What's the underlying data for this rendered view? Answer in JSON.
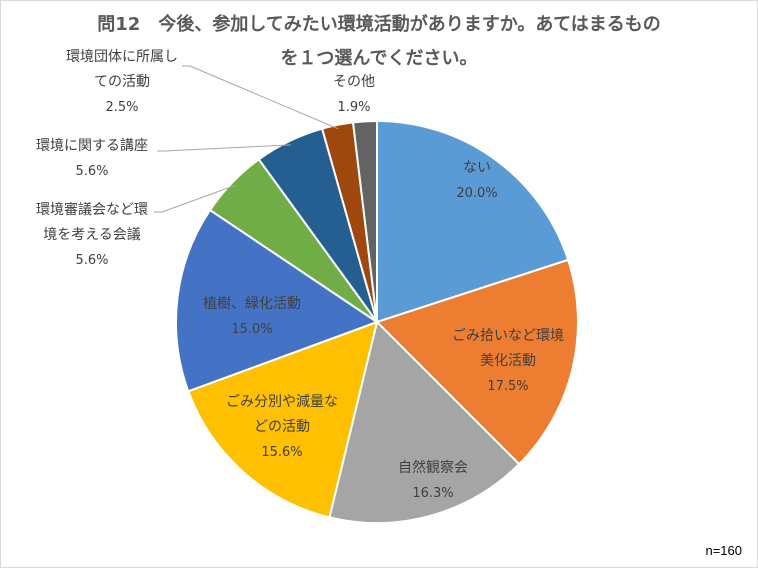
{
  "chart_data": {
    "type": "pie",
    "title": "問12　今後、参加してみたい環境活動がありますか。あてはまるものを１つ選んでください。",
    "title_lines": [
      "問12　今後、参加してみたい環境活動がありますか。あてはまるもの",
      "を１つ選んでください。"
    ],
    "note": "n=160",
    "slices": [
      {
        "label": "ない",
        "label_lines": [
          "ない"
        ],
        "value": 20.0,
        "value_label": "20.0%",
        "color": "#5b9bd5"
      },
      {
        "label": "ごみ拾いなど環境美化活動",
        "label_lines": [
          "ごみ拾いなど環境",
          "美化活動"
        ],
        "value": 17.5,
        "value_label": "17.5%",
        "color": "#ed7d31"
      },
      {
        "label": "自然観察会",
        "label_lines": [
          "自然観察会"
        ],
        "value": 16.3,
        "value_label": "16.3%",
        "color": "#a5a5a5"
      },
      {
        "label": "ごみ分別や減量などの活動",
        "label_lines": [
          "ごみ分別や減量な",
          "どの活動"
        ],
        "value": 15.6,
        "value_label": "15.6%",
        "color": "#ffc000"
      },
      {
        "label": "植樹、緑化活動",
        "label_lines": [
          "植樹、緑化活動"
        ],
        "value": 15.0,
        "value_label": "15.0%",
        "color": "#4472c4"
      },
      {
        "label": "環境審議会など環境を考える会議",
        "label_lines": [
          "環境審議会など環",
          "境を考える会議"
        ],
        "value": 5.6,
        "value_label": "5.6%",
        "color": "#70ad47"
      },
      {
        "label": "環境に関する講座",
        "label_lines": [
          "環境に関する講座"
        ],
        "value": 5.6,
        "value_label": "5.6%",
        "color": "#255e91"
      },
      {
        "label": "環境団体に所属しての活動",
        "label_lines": [
          "環境団体に所属し",
          "ての活動"
        ],
        "value": 2.5,
        "value_label": "2.5%",
        "color": "#9e480e"
      },
      {
        "label": "その他",
        "label_lines": [
          "その他"
        ],
        "value": 1.9,
        "value_label": "1.9%",
        "color": "#636363"
      }
    ]
  }
}
